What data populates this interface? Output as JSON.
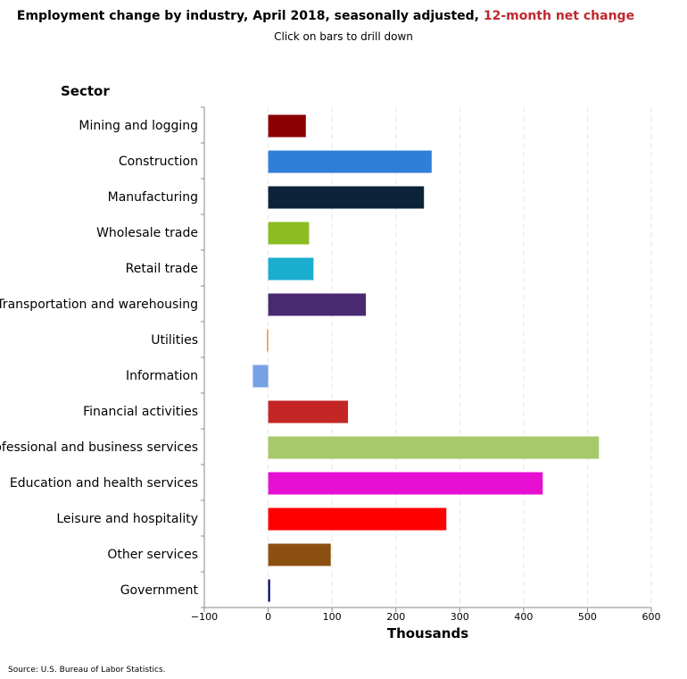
{
  "header": {
    "title_main": "Employment change by industry, April 2018, seasonally adjusted,",
    "title_accent": "12-month net change",
    "subtitle": "Click on bars to drill down"
  },
  "source": "Source: U.S. Bureau of Labor Statistics.",
  "colors": {
    "accent": "#c0282d",
    "grid": "#e6e6e6",
    "axis": "#888888"
  },
  "chart_data": {
    "type": "bar",
    "orientation": "horizontal",
    "y_axis_title": "Sector",
    "x_axis_title": "Thousands",
    "xlim": [
      -100,
      600
    ],
    "ticks": [
      -100,
      0,
      100,
      200,
      300,
      400,
      500,
      600
    ],
    "grid": true,
    "categories": [
      "Mining and logging",
      "Construction",
      "Manufacturing",
      "Wholesale trade",
      "Retail trade",
      "Transportation and warehousing",
      "Utilities",
      "Information",
      "Financial activities",
      "Professional and business services",
      "Education and health services",
      "Leisure and hospitality",
      "Other services",
      "Government"
    ],
    "values": [
      59,
      256,
      244,
      64,
      71,
      153,
      -2,
      -24,
      125,
      518,
      430,
      279,
      98,
      3
    ],
    "bar_colors": [
      "#8b0000",
      "#2f7ed8",
      "#0d233a",
      "#8bbc21",
      "#1aadce",
      "#492970",
      "#f28f43",
      "#77a1e5",
      "#c42525",
      "#a6c96a",
      "#e60fd2",
      "#ff0000",
      "#8b5010",
      "#000066"
    ]
  }
}
